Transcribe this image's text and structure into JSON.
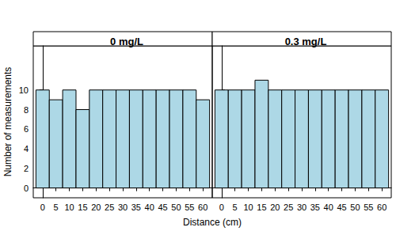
{
  "chart_data": {
    "type": "histogram",
    "x_label": "Distance (cm)",
    "y_label": "Number of measurements",
    "bins": [
      -2.5,
      2.5,
      7.5,
      12.5,
      17.5,
      22.5,
      27.5,
      32.5,
      37.5,
      42.5,
      47.5,
      52.5,
      57.5,
      62.5
    ],
    "panels": [
      {
        "title": "0 mg/L",
        "values": [
          10,
          9,
          10,
          8,
          10,
          10,
          10,
          10,
          10,
          10,
          10,
          10,
          9
        ]
      },
      {
        "title": "0.3 mg/L",
        "values": [
          10,
          10,
          10,
          11,
          10,
          10,
          10,
          10,
          10,
          10,
          10,
          10,
          10
        ]
      }
    ],
    "color": "#add8e6",
    "xlim": [
      -3.5,
      63.5
    ],
    "xticks": [
      0,
      5,
      10,
      15,
      20,
      25,
      30,
      35,
      40,
      45,
      50,
      55,
      60
    ],
    "ylim": [
      -1,
      14.5
    ],
    "yticks": [
      0,
      2,
      4,
      6,
      8,
      10
    ],
    "grid": false
  }
}
